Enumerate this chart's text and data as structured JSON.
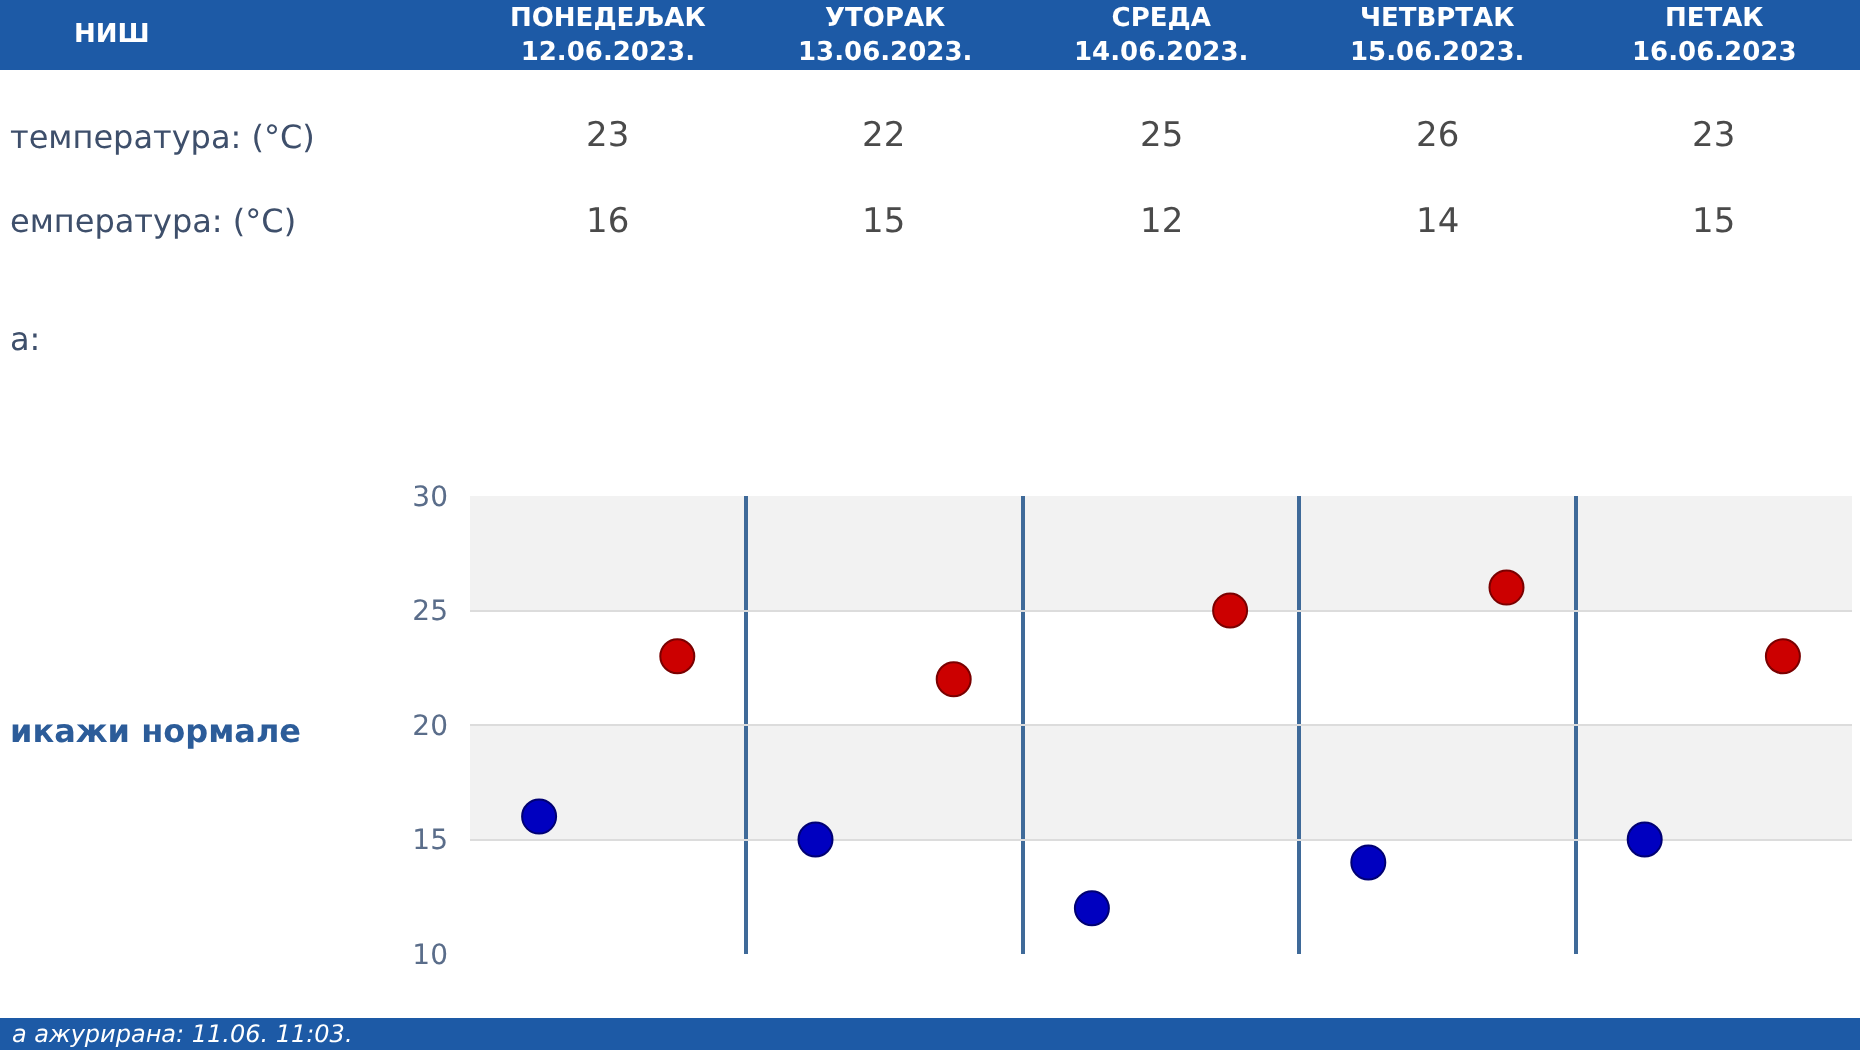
{
  "chart_data": {
    "type": "scatter",
    "title": "НИШ",
    "categories": [
      null,
      null,
      null,
      null,
      null
    ],
    "series": [
      {
        "color": "#cc0000",
        "values": [
          23,
          22,
          25,
          26,
          23
        ]
      },
      {
        "color": "#0000c0",
        "values": [
          16,
          15,
          12,
          14,
          15
        ]
      }
    ],
    "ylim": [
      10,
      30
    ],
    "yticks": [
      10,
      15,
      20,
      25,
      30
    ],
    "bands": [
      {
        "axis": "y",
        "from": 15,
        "to": 20,
        "color": "#f2f2f2"
      },
      {
        "axis": "y",
        "from": 25,
        "to": 30,
        "color": "#f2f2f2"
      }
    ],
    "grid": true,
    "marker": "circle",
    "data_labels": true,
    "annotations": [
      "ПОНЕДЕЉАК\n12.06.2023.",
      "УТОРАК\n13.06.2023.",
      "СРЕДА\n14.06.2023.",
      "ЧЕТВРТАК\n15.06.2023.",
      "ПЕТАК\n16.06.2023",
      "температура: (°C)",
      "емпература: (°C)",
      "а:",
      "икажи нормале",
      "а ажурирана: 11.06. 11:03."
    ]
  }
}
